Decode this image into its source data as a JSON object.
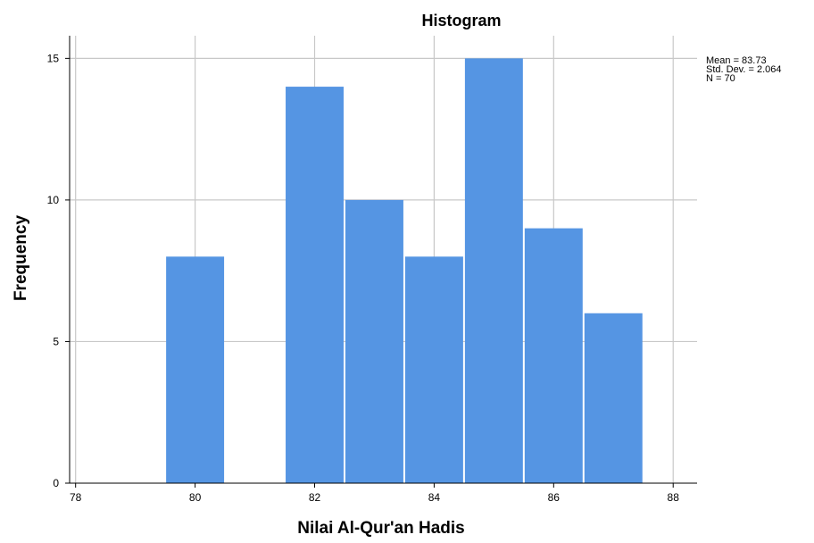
{
  "chart_data": {
    "type": "bar",
    "title": "Histogram",
    "xlabel": "Nilai Al-Qur'an Hadis",
    "ylabel": "Frequency",
    "bins": [
      {
        "from": 79.5,
        "to": 80.5,
        "count": 8
      },
      {
        "from": 81.5,
        "to": 82.5,
        "count": 14
      },
      {
        "from": 82.5,
        "to": 83.5,
        "count": 10
      },
      {
        "from": 83.5,
        "to": 84.5,
        "count": 8
      },
      {
        "from": 84.5,
        "to": 85.5,
        "count": 15
      },
      {
        "from": 85.5,
        "to": 86.5,
        "count": 9
      },
      {
        "from": 86.5,
        "to": 87.5,
        "count": 6
      }
    ],
    "x_ticks": [
      "78",
      "80",
      "82",
      "84",
      "86",
      "88"
    ],
    "y_ticks": [
      "0",
      "5",
      "10",
      "15"
    ],
    "xlim": [
      77.9,
      88.4
    ],
    "ylim": [
      0,
      15.8
    ],
    "grid": true,
    "bar_color": "#5595E3",
    "statistics": [
      "Mean = 83.73",
      "Std. Dev. = 2.064",
      "N = 70"
    ]
  }
}
